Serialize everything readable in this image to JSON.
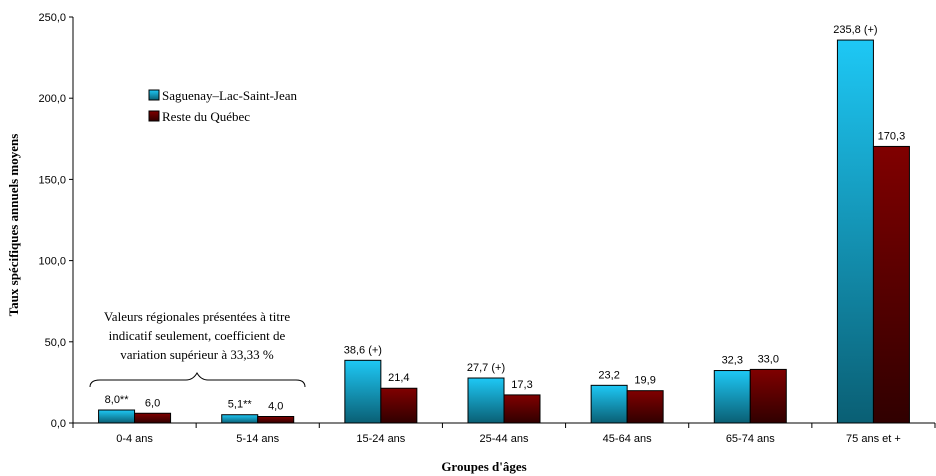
{
  "chart_data": {
    "type": "bar",
    "xlabel": "Groupes d'âges",
    "ylabel": "Taux spécifiques annuels moyens",
    "ylim": [
      0,
      250
    ],
    "yticks": [
      "0,0",
      "50,0",
      "100,0",
      "150,0",
      "200,0",
      "250,0"
    ],
    "categories": [
      "0-4 ans",
      "5-14 ans",
      "15-24 ans",
      "25-44 ans",
      "45-64 ans",
      "65-74 ans",
      "75 ans et +"
    ],
    "series": [
      {
        "name": "Saguenay–Lac-Saint-Jean",
        "values": [
          8.0,
          5.1,
          38.6,
          27.7,
          23.2,
          32.3,
          235.8
        ],
        "labels": [
          "8,0**",
          "5,1**",
          "38,6 (+)",
          "27,7 (+)",
          "23,2",
          "32,3",
          "235,8 (+)"
        ]
      },
      {
        "name": "Reste du Québec",
        "values": [
          6.0,
          4.0,
          21.4,
          17.3,
          19.9,
          33.0,
          170.3
        ],
        "labels": [
          "6,0",
          "4,0",
          "21,4",
          "17,3",
          "19,9",
          "33,0",
          "170,3"
        ]
      }
    ],
    "annotation": [
      "Valeurs régionales présentées à titre",
      "indicatif seulement, coefficient de",
      "variation supérieur à 33,33 %"
    ],
    "grid": false,
    "legend_position": "top-left",
    "colors": {
      "series1_top": "#1ec8f5",
      "series1_bottom": "#0a5f74",
      "series2_top": "#7e0000",
      "series2_bottom": "#2e0000"
    }
  }
}
